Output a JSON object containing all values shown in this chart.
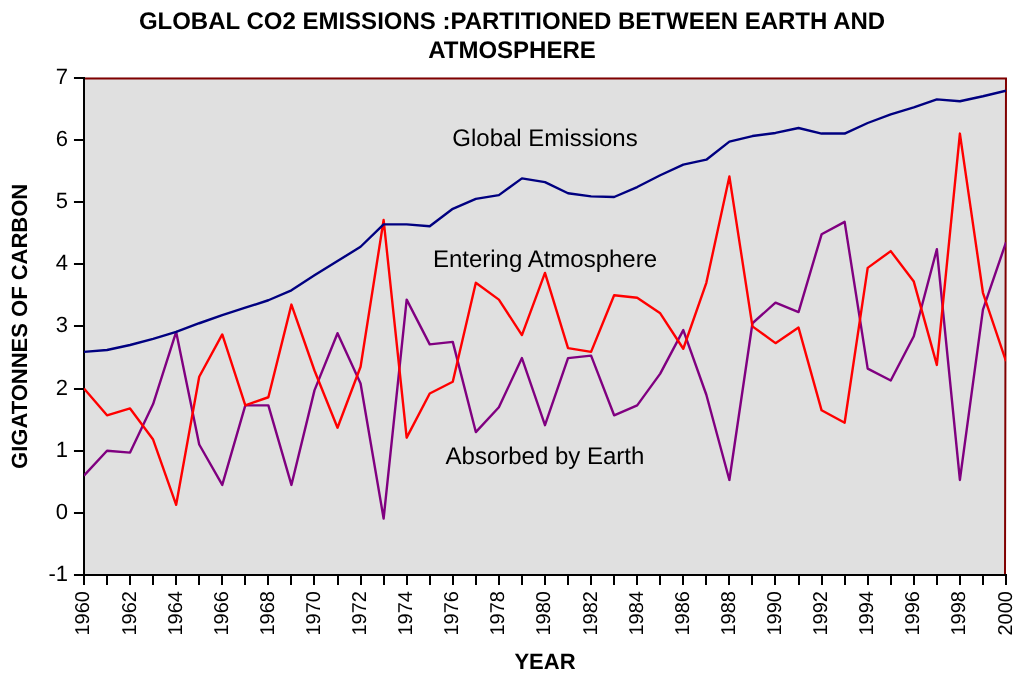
{
  "chart_data": {
    "type": "line",
    "title": "GLOBAL CO2 EMISSIONS :PARTITIONED BETWEEN EARTH AND ATMOSPHERE",
    "xlabel": "YEAR",
    "ylabel": "GIGATONNES OF CARBON",
    "x": [
      1960,
      1961,
      1962,
      1963,
      1964,
      1965,
      1966,
      1967,
      1968,
      1969,
      1970,
      1971,
      1972,
      1973,
      1974,
      1975,
      1976,
      1977,
      1978,
      1979,
      1980,
      1981,
      1982,
      1983,
      1984,
      1985,
      1986,
      1987,
      1988,
      1989,
      1990,
      1991,
      1992,
      1993,
      1994,
      1995,
      1996,
      1997,
      1998,
      1999,
      2000
    ],
    "series": [
      {
        "name": "Global Emissions",
        "color": "#000080",
        "values": [
          2.59,
          2.62,
          2.7,
          2.8,
          2.91,
          3.05,
          3.18,
          3.3,
          3.42,
          3.58,
          3.82,
          4.05,
          4.28,
          4.64,
          4.64,
          4.61,
          4.89,
          5.05,
          5.11,
          5.38,
          5.32,
          5.14,
          5.09,
          5.08,
          5.24,
          5.43,
          5.6,
          5.68,
          5.97,
          6.06,
          6.11,
          6.19,
          6.1,
          6.1,
          6.27,
          6.41,
          6.52,
          6.65,
          6.62,
          6.7,
          6.79
        ]
      },
      {
        "name": "Entering Atmosphere",
        "color": "#ff0000",
        "values": [
          2.0,
          1.57,
          1.68,
          1.18,
          0.13,
          2.19,
          2.87,
          1.73,
          1.86,
          3.35,
          2.29,
          1.37,
          2.35,
          4.71,
          1.21,
          1.92,
          2.11,
          3.7,
          3.43,
          2.86,
          3.86,
          2.65,
          2.59,
          3.5,
          3.46,
          3.21,
          2.64,
          3.7,
          5.41,
          3.0,
          2.73,
          2.98,
          1.65,
          1.45,
          3.94,
          4.21,
          3.72,
          2.38,
          6.1,
          3.54,
          2.44
        ]
      },
      {
        "name": "Absorbed by Earth",
        "color": "#800080",
        "values": [
          0.6,
          1.0,
          0.97,
          1.75,
          2.91,
          1.1,
          0.45,
          1.73,
          1.73,
          0.45,
          1.97,
          2.89,
          2.08,
          -0.09,
          3.43,
          2.71,
          2.75,
          1.3,
          1.7,
          2.49,
          1.41,
          2.49,
          2.53,
          1.57,
          1.73,
          2.24,
          2.94,
          1.9,
          0.53,
          3.05,
          3.38,
          3.23,
          4.48,
          4.68,
          2.32,
          2.13,
          2.84,
          4.24,
          0.53,
          3.27,
          4.35
        ]
      }
    ],
    "xlim": [
      1960,
      2000
    ],
    "xticks": [
      1960,
      {
        "value": 1961,
        "label": null
      },
      1962,
      {
        "value": 1963,
        "label": null
      },
      1964,
      {
        "value": 1965,
        "label": null
      },
      1966,
      {
        "value": 1967,
        "label": null
      },
      1968,
      {
        "value": 1969,
        "label": null
      },
      1970,
      {
        "value": 1971,
        "label": null
      },
      1972,
      {
        "value": 1973,
        "label": null
      },
      1974,
      {
        "value": 1975,
        "label": null
      },
      1976,
      {
        "value": 1977,
        "label": null
      },
      1978,
      {
        "value": 1979,
        "label": null
      },
      1980,
      {
        "value": 1981,
        "label": null
      },
      1982,
      {
        "value": 1983,
        "label": null
      },
      1984,
      {
        "value": 1985,
        "label": null
      },
      1986,
      {
        "value": 1987,
        "label": null
      },
      1988,
      {
        "value": 1989,
        "label": null
      },
      1990,
      {
        "value": 1991,
        "label": null
      },
      1992,
      {
        "value": 1993,
        "label": null
      },
      1994,
      {
        "value": 1995,
        "label": null
      },
      1996,
      {
        "value": 1997,
        "label": null
      },
      1998,
      {
        "value": 1999,
        "label": null
      },
      2000
    ],
    "ylim": [
      -1,
      7
    ],
    "yticks": [
      -1,
      0,
      1,
      2,
      3,
      4,
      5,
      6,
      7
    ],
    "grid": false,
    "legend": false,
    "marker": "none",
    "line_style": "solid"
  }
}
